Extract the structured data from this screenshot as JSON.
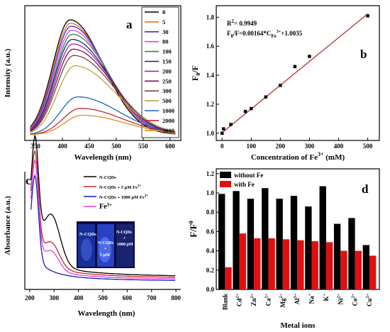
{
  "chart_data": [
    {
      "panel_label": "a",
      "type": "line",
      "xlabel": "Wavelength (nm)",
      "ylabel": "Intensity (a.u.)",
      "xlim": [
        330,
        620
      ],
      "xticks": [
        350,
        400,
        450,
        500,
        550,
        600
      ],
      "legend_placement": "top-right",
      "series": [
        {
          "name": "0",
          "color": "#000000",
          "peak_x": 414,
          "peak_y": 1.0
        },
        {
          "name": "5",
          "color": "#e8701a",
          "peak_x": 415,
          "peak_y": 0.97
        },
        {
          "name": "30",
          "color": "#3333cc",
          "peak_x": 416,
          "peak_y": 0.945
        },
        {
          "name": "80",
          "color": "#e040e0",
          "peak_x": 417,
          "peak_y": 0.91
        },
        {
          "name": "100",
          "color": "#2e8b2e",
          "peak_x": 418,
          "peak_y": 0.875
        },
        {
          "name": "150",
          "color": "#1a237e",
          "peak_x": 418,
          "peak_y": 0.83
        },
        {
          "name": "200",
          "color": "#9c27b0",
          "peak_x": 419,
          "peak_y": 0.79
        },
        {
          "name": "250",
          "color": "#880e4f",
          "peak_x": 420,
          "peak_y": 0.745
        },
        {
          "name": "300",
          "color": "#6d4c41",
          "peak_x": 421,
          "peak_y": 0.69
        },
        {
          "name": "500",
          "color": "#b5a642",
          "peak_x": 423,
          "peak_y": 0.6
        },
        {
          "name": "1000",
          "color": "#1565c0",
          "peak_x": 428,
          "peak_y": 0.33
        },
        {
          "name": "2000",
          "color": "#c62828",
          "peak_x": 433,
          "peak_y": 0.23
        },
        {
          "name": "3000",
          "color": "#e08a2a",
          "peak_x": 436,
          "peak_y": 0.17
        }
      ]
    },
    {
      "panel_label": "b",
      "type": "scatter",
      "xlabel": "Concentration of Fe",
      "xlabel_sup": "3+",
      "xlabel_unit": " (mM)",
      "ylabel": "F",
      "ylabel_sub": "0",
      "ylabel_tail": "/F",
      "xlim": [
        -20,
        540
      ],
      "ylim": [
        0.95,
        1.88
      ],
      "xticks": [
        0,
        100,
        200,
        300,
        400,
        500
      ],
      "yticks": [
        1.0,
        1.2,
        1.4,
        1.6,
        1.8
      ],
      "annotation_r2": "R",
      "annotation_r2_sup": "2",
      "annotation_r2_tail": "= 0.9949",
      "annotation_fit_a": "F",
      "annotation_fit_b": "0",
      "annotation_fit_c": "/F=0.00164*C",
      "annotation_fit_d": "Fe",
      "annotation_fit_e": "3+",
      "annotation_fit_f": "+1.0035",
      "fit": {
        "slope": 0.00164,
        "intercept": 1.0035,
        "x_range": [
          0,
          500
        ]
      },
      "x": [
        0,
        5,
        30,
        80,
        100,
        150,
        200,
        250,
        300,
        500
      ],
      "y": [
        1.0,
        1.03,
        1.06,
        1.15,
        1.17,
        1.25,
        1.33,
        1.46,
        1.53,
        1.81
      ]
    },
    {
      "panel_label": "c",
      "type": "line",
      "xlabel": "Wavelength (nm)",
      "ylabel": "Absorbance (a.u.)",
      "xlim": [
        180,
        820
      ],
      "xticks": [
        200,
        300,
        400,
        500,
        600,
        700,
        800
      ],
      "legend_placement": "top-right",
      "series": [
        {
          "name": "N-CQDs",
          "color": "#000000"
        },
        {
          "name": "N-CQDs + 5 μM Fe",
          "name_sup": "3+",
          "color": "#c62828"
        },
        {
          "name": "N-CQDs + 1000 μM Fe",
          "name_sup": "3+",
          "color": "#1a1ac0"
        },
        {
          "name": "Fe",
          "name_sup": "3+",
          "color": "#e040e0"
        }
      ],
      "inset_labels": [
        "N-CQDs",
        "N-CQDs",
        "+",
        "5 μM",
        "N-CQDs",
        "+",
        "1000 μM"
      ]
    },
    {
      "panel_label": "d",
      "type": "bar",
      "xlabel": "Metal ions",
      "ylabel": "F/F",
      "ylabel_sub": "0",
      "ylim": [
        0,
        1.25
      ],
      "yticks": [
        0.0,
        0.2,
        0.4,
        0.6,
        0.8,
        1.0,
        1.2
      ],
      "legend_placement": "top-left",
      "categories": [
        "Blank",
        "Cd",
        "Zn",
        "Ca",
        "Mg",
        "Al",
        "Na",
        "K",
        "Ni",
        "Co",
        "Cu"
      ],
      "category_sups": [
        "",
        "2+",
        "2+",
        "2+",
        "2+",
        "3+",
        "+",
        "+",
        "2+",
        "2+",
        "2+"
      ],
      "series": [
        {
          "name": "without Fe",
          "color": "#000000",
          "values": [
            0.99,
            1.02,
            0.94,
            1.05,
            0.94,
            0.97,
            0.86,
            1.07,
            0.68,
            0.74,
            0.46
          ]
        },
        {
          "name": "with Fe",
          "color": "#e01010",
          "values": [
            0.23,
            0.58,
            0.53,
            0.53,
            0.52,
            0.51,
            0.5,
            0.49,
            0.4,
            0.4,
            0.35
          ]
        }
      ]
    }
  ]
}
